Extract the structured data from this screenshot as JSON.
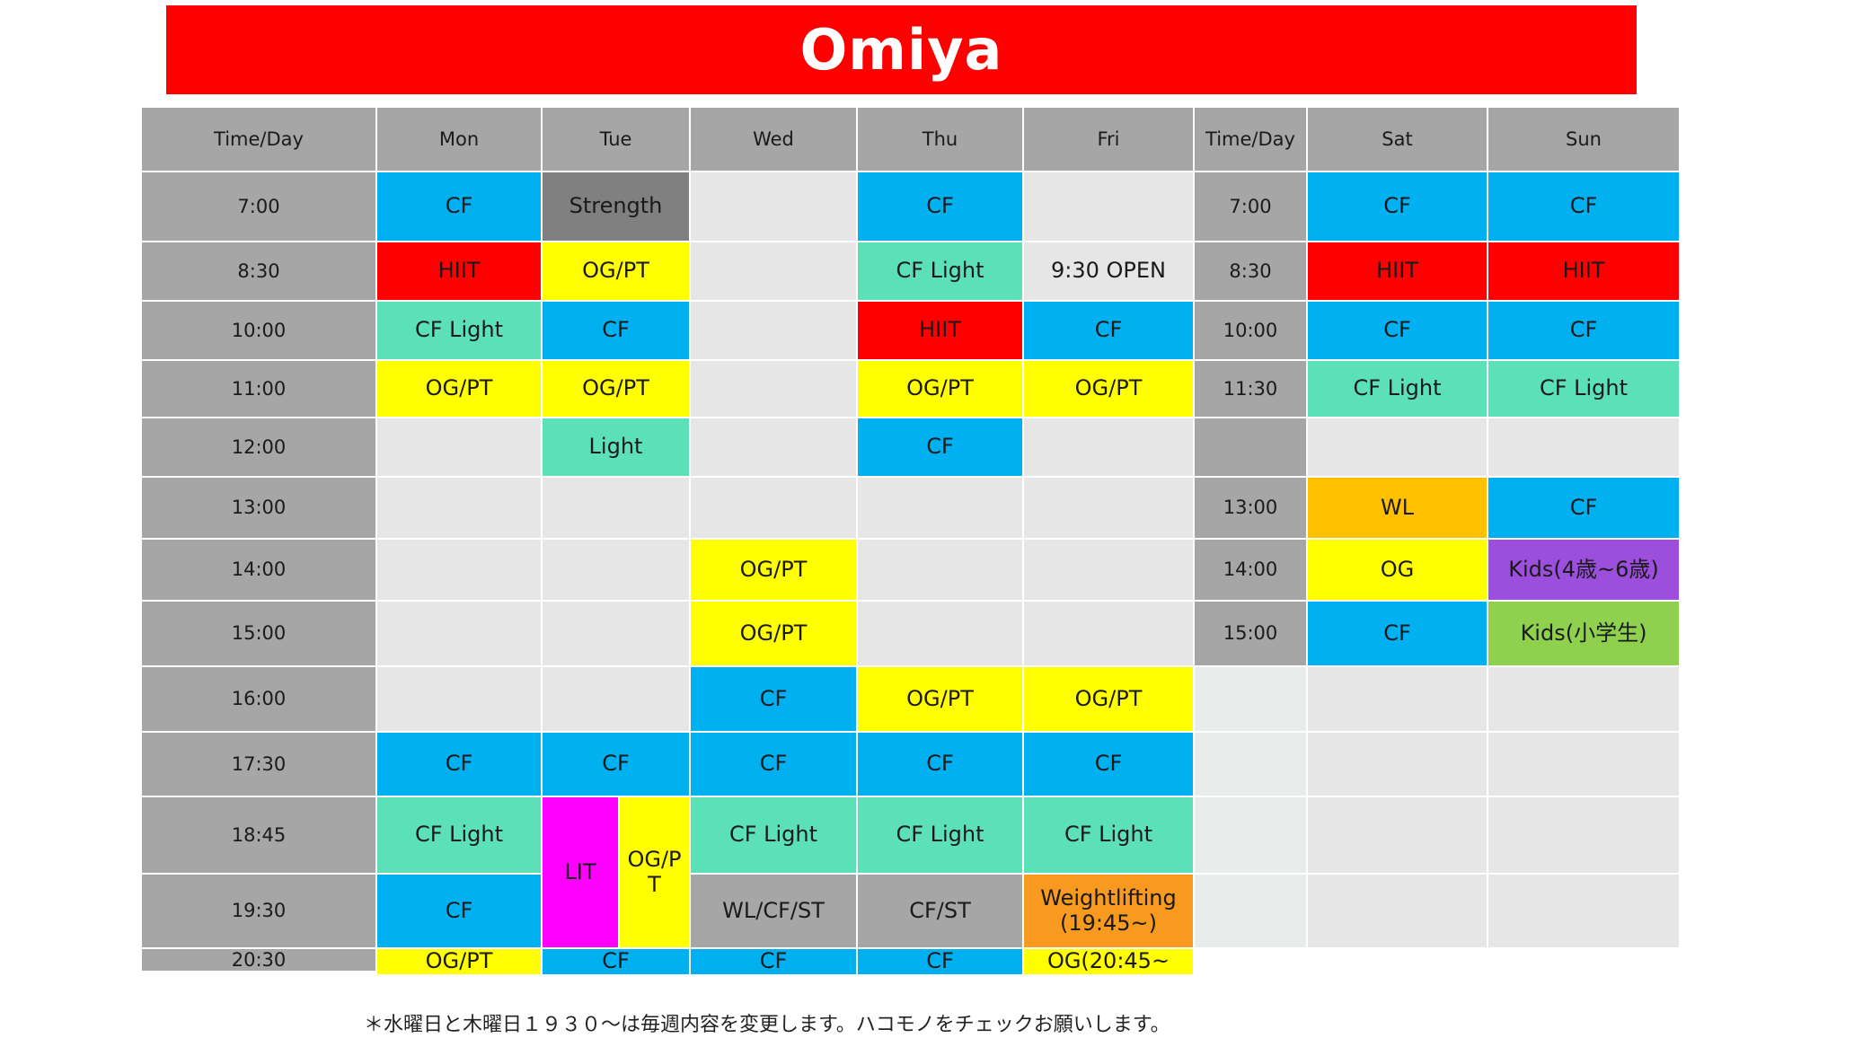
{
  "title": "Omiya",
  "headers": [
    "Time/Day",
    "Mon",
    "Tue",
    "Wed",
    "Thu",
    "Fri",
    "Time/Day",
    "Sat",
    "Sun"
  ],
  "colors": {
    "cf": "#00b0f0",
    "light": "#5ce0b8",
    "hiit": "#ff0000",
    "og": "#ffff00",
    "strength": "#808080",
    "gray": "#a6a6a6",
    "empty": "#e6e6e6",
    "empty_sat_col": "#e8ecea",
    "wl_sat": "#ffc000",
    "weightlifting_fri": "#f79a1f",
    "kids_4_6": "#9b4fdc",
    "kids_elementary": "#8fd14f",
    "lit": "#ff00ff"
  },
  "rows": [
    {
      "time_left": "7:00",
      "mon": "CF",
      "tue": "Strength",
      "wed": "",
      "thu": "CF",
      "fri": "",
      "time_right": "7:00",
      "sat": "CF",
      "sun": "CF"
    },
    {
      "time_left": "8:30",
      "mon": "HIIT",
      "tue": "OG/PT",
      "wed": "",
      "thu": "CF Light",
      "fri": "9:30 OPEN",
      "time_right": "8:30",
      "sat": "HIIT",
      "sun": "HIIT"
    },
    {
      "time_left": "10:00",
      "mon": "CF Light",
      "tue": "CF",
      "wed": "",
      "thu": "HIIT",
      "fri": "CF",
      "time_right": "10:00",
      "sat": "CF",
      "sun": "CF"
    },
    {
      "time_left": "11:00",
      "mon": "OG/PT",
      "tue": "OG/PT",
      "wed": "",
      "thu": "OG/PT",
      "fri": "OG/PT",
      "time_right": "11:30",
      "sat": "CF Light",
      "sun": "CF Light"
    },
    {
      "time_left": "12:00",
      "mon": "",
      "tue": "Light",
      "wed": "",
      "thu": "CF",
      "fri": "",
      "time_right": "",
      "sat": "",
      "sun": ""
    },
    {
      "time_left": "13:00",
      "mon": "",
      "tue": "",
      "wed": "",
      "thu": "",
      "fri": "",
      "time_right": "13:00",
      "sat": "WL",
      "sun": "CF"
    },
    {
      "time_left": "14:00",
      "mon": "",
      "tue": "",
      "wed": "OG/PT",
      "thu": "",
      "fri": "",
      "time_right": "14:00",
      "sat": "OG",
      "sun": "Kids(4歳~6歳)"
    },
    {
      "time_left": "15:00",
      "mon": "",
      "tue": "",
      "wed": "OG/PT",
      "thu": "",
      "fri": "",
      "time_right": "15:00",
      "sat": "CF",
      "sun": "Kids(小学生)"
    },
    {
      "time_left": "16:00",
      "mon": "",
      "tue": "",
      "wed": "CF",
      "thu": "OG/PT",
      "fri": "OG/PT",
      "time_right": "",
      "sat": "",
      "sun": ""
    },
    {
      "time_left": "17:30",
      "mon": "CF",
      "tue": "CF",
      "wed": "CF",
      "thu": "CF",
      "fri": "CF",
      "time_right": "",
      "sat": "",
      "sun": ""
    },
    {
      "time_left": "18:45",
      "mon": "CF Light",
      "tue_lit": "LIT",
      "tue_og": "OG/P\nT",
      "wed": "CF Light",
      "thu": "CF Light",
      "fri": "CF  Light",
      "time_right": "",
      "sat": "",
      "sun": ""
    },
    {
      "time_left": "19:30",
      "mon": "CF",
      "wed": "WL/CF/ST",
      "thu": "CF/ST",
      "fri": "Weightlifting\n(19:45~)",
      "time_right": "",
      "sat": "",
      "sun": ""
    },
    {
      "time_left": "20:30",
      "mon": "OG/PT",
      "tue": "CF",
      "wed": "CF",
      "thu": "CF",
      "fri": "OG(20:45~",
      "time_right": "",
      "sat": "",
      "sun": ""
    }
  ],
  "footnote": "＊水曜日と木曜日１９３０～は毎週内容を変更します。ハコモノをチェックお願いします。"
}
